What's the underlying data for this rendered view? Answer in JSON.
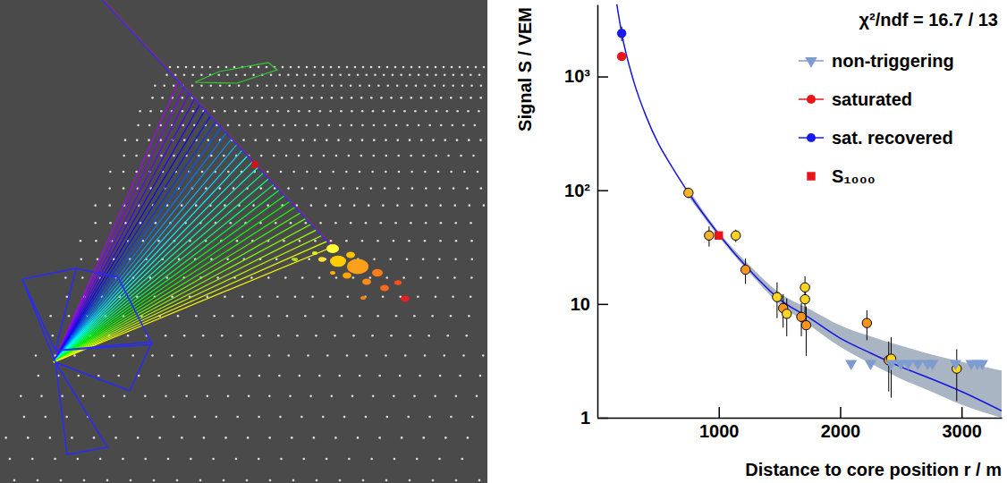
{
  "chart_data": {
    "type": "scatter",
    "x_label": "Distance to core position r / m",
    "y_label": "Signal S / VEM",
    "legend_title": "χ²/ndf = 16.7 / 13",
    "legend": "top-right",
    "log": "y",
    "xlim": [
      0,
      3330
    ],
    "ylim": [
      1,
      4300
    ],
    "xticks": [
      1000,
      2000,
      3000
    ],
    "yticks": [
      1,
      10,
      {
        "value": 100,
        "label": "10²"
      },
      {
        "value": 1000,
        "label": "10³"
      }
    ],
    "series": [
      {
        "type": "scatter",
        "marker": "circle",
        "x": [
          750,
          920,
          1140,
          1220,
          1480,
          1530,
          1560,
          1680,
          1710,
          1710,
          1720,
          2220,
          2400,
          2420,
          2960
        ],
        "values": [
          95,
          40,
          40,
          20,
          11.5,
          9.2,
          8.2,
          7.7,
          14,
          11,
          6.5,
          6.8,
          3.2,
          3.3,
          2.7
        ],
        "errors": [
          10,
          8,
          5,
          5,
          4,
          3,
          3,
          2.5,
          3.5,
          3,
          3,
          2,
          1.5,
          1.8,
          1.3
        ],
        "colors": [
          "#f7b32b",
          "#f7b32b",
          "#f9d423",
          "#f7941d",
          "#f9d423",
          "#f7941d",
          "#f9d423",
          "#f7941d",
          "#f9d423",
          "#f9d423",
          "#f7941d",
          "#f7941d",
          "#f7941d",
          "#f9d423",
          "#f9d423"
        ]
      },
      {
        "name": "non-triggering",
        "type": "scatter",
        "marker": "triangle-down",
        "color": "#7f9ccf",
        "x": [
          2090,
          2250,
          2420,
          2500,
          2560,
          2640,
          2720,
          2760,
          2950,
          3080,
          3130,
          3170
        ],
        "values": [
          3,
          3,
          3,
          3,
          3,
          3,
          3,
          3,
          3,
          3,
          3,
          3
        ]
      },
      {
        "name": "saturated",
        "type": "scatter",
        "marker": "circle",
        "color": "#e8161b",
        "x": [
          200
        ],
        "values": [
          1500
        ]
      },
      {
        "name": "sat. recovered",
        "type": "scatter",
        "marker": "circle",
        "color": "#1a1aee",
        "x": [
          200
        ],
        "values": [
          2400
        ],
        "errors": [
          350
        ]
      },
      {
        "name": "S₁₀₀₀",
        "type": "scatter",
        "marker": "square",
        "color": "#e8161b",
        "x": [
          1000
        ],
        "values": [
          40
        ]
      },
      {
        "type": "line",
        "color": "#1515e0",
        "x": [
          160,
          200,
          300,
          400,
          500,
          600,
          750,
          1000,
          1250,
          1500,
          1750,
          2000,
          2250,
          2500,
          2750,
          3000,
          3330
        ],
        "values": [
          4300,
          2400,
          900,
          450,
          260,
          170,
          95,
          41,
          20,
          11,
          7.5,
          5.0,
          3.7,
          2.8,
          2.2,
          1.7,
          1.15
        ]
      },
      {
        "type": "area",
        "color": "#a9b5c3",
        "x": [
          750,
          1000,
          1250,
          1500,
          1750,
          2000,
          2250,
          2500,
          2750,
          3000,
          3330
        ],
        "lower": [
          88,
          39,
          19,
          10,
          6.5,
          4.2,
          3.0,
          2.2,
          1.7,
          1.3,
          1.0
        ],
        "upper": [
          102,
          43,
          22,
          12.5,
          9,
          6.5,
          5.2,
          4.3,
          3.6,
          3.1,
          2.6
        ]
      }
    ]
  }
}
